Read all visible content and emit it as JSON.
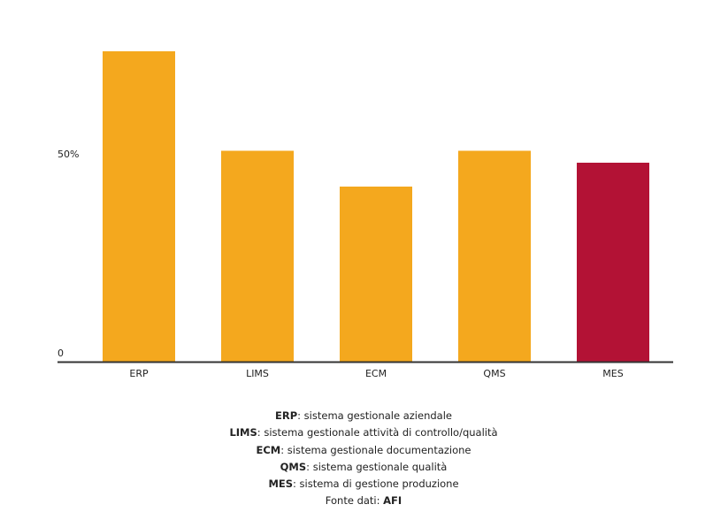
{
  "chart_data": {
    "type": "bar",
    "title": "",
    "xlabel": "",
    "ylabel": "",
    "categories": [
      "ERP",
      "LIMS",
      "ECM",
      "QMS",
      "MES"
    ],
    "values": [
      78,
      53,
      44,
      53,
      50
    ],
    "unit": "%",
    "ylim": [
      0,
      85
    ],
    "yticks": [
      {
        "value": 0,
        "label": "0"
      },
      {
        "value": 50,
        "label": "50%"
      }
    ],
    "grid": false,
    "colors": [
      "#F4A81E",
      "#F4A81E",
      "#F4A81E",
      "#F4A81E",
      "#B31235"
    ]
  },
  "legend": [
    {
      "abbr": "ERP",
      "text": ": sistema gestionale aziendale"
    },
    {
      "abbr": "LIMS",
      "text": ": sistema gestionale attività di controllo/qualità"
    },
    {
      "abbr": "ECM",
      "text": ": sistema gestionale documentazione"
    },
    {
      "abbr": "QMS",
      "text": ": sistema gestionale qualità"
    },
    {
      "abbr": "MES",
      "text": ": sistema di gestione produzione"
    }
  ],
  "source": {
    "label": "Fonte dati: ",
    "value": "AFI"
  }
}
